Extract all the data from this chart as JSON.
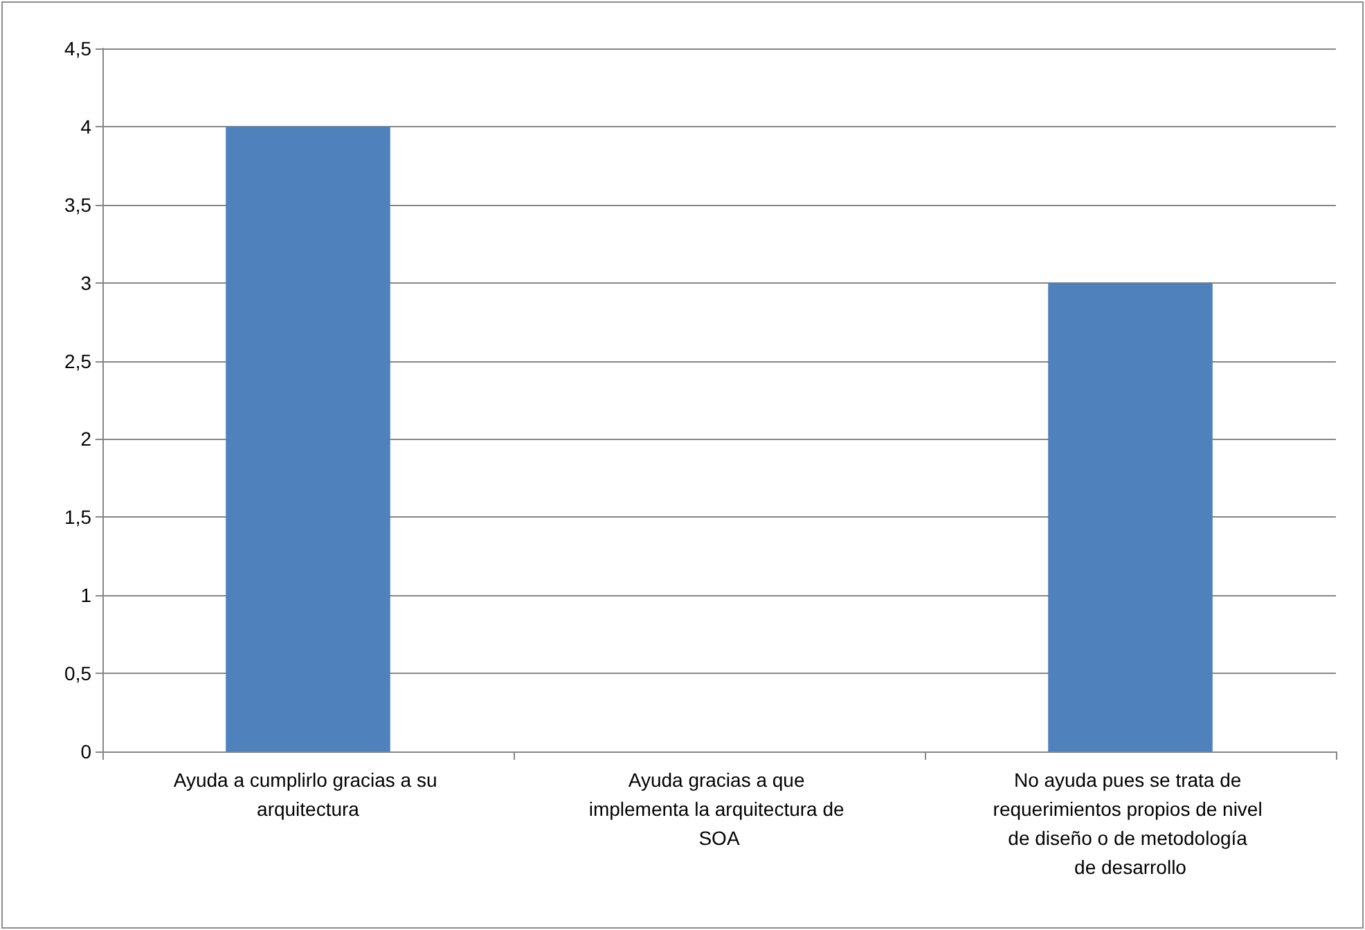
{
  "chart_data": {
    "type": "bar",
    "categories": [
      "Ayuda a cumplirlo gracias a su arquitectura",
      "Ayuda gracias a que implementa la arquitectura de SOA",
      "No ayuda pues se trata de requerimientos propios de nivel de diseño o de metodología de desarrollo"
    ],
    "values": [
      4,
      0,
      3
    ],
    "color": "#4f81bd",
    "ylim": [
      0,
      4.5
    ],
    "yticks": [
      0,
      {
        "value": 0.5,
        "label": "0,5"
      },
      1,
      {
        "value": 1.5,
        "label": "1,5"
      },
      2,
      {
        "value": 2.5,
        "label": "2,5"
      },
      3,
      {
        "value": 3.5,
        "label": "3,5"
      },
      4,
      {
        "value": 4.5,
        "label": "4,5"
      }
    ],
    "grid": "y"
  }
}
